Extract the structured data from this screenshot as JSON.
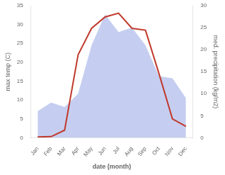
{
  "chart_data": {
    "type": "line",
    "categories": [
      "Jan",
      "Feb",
      "Mar",
      "Apr",
      "May",
      "Jun",
      "Jul",
      "Aug",
      "Sep",
      "Oct",
      "Nov",
      "Dec"
    ],
    "series": [
      {
        "type": "area",
        "color": "#c5cef0",
        "axis": "y2",
        "values": [
          6.0,
          8.0,
          7.0,
          10.0,
          21.0,
          28.0,
          24.0,
          25.0,
          21.0,
          14.0,
          13.5,
          9.0
        ]
      },
      {
        "type": "line",
        "color": "#c0392b",
        "values": [
          0.2,
          0.3,
          2.0,
          22.0,
          29.0,
          32.0,
          33.0,
          29.0,
          28.5,
          17.0,
          5.0,
          3.0
        ]
      }
    ],
    "xlabel": "date (month)",
    "ylabel": "max temp (C)",
    "y2label": "med. precipitation (kg/m2)",
    "ylim": [
      0,
      35
    ],
    "yticks": [
      0,
      5,
      10,
      15,
      20,
      25,
      30,
      35
    ],
    "y2lim": [
      0,
      30
    ],
    "y2ticks": [
      0,
      5,
      10,
      15,
      20,
      25,
      30
    ],
    "grid": false
  }
}
